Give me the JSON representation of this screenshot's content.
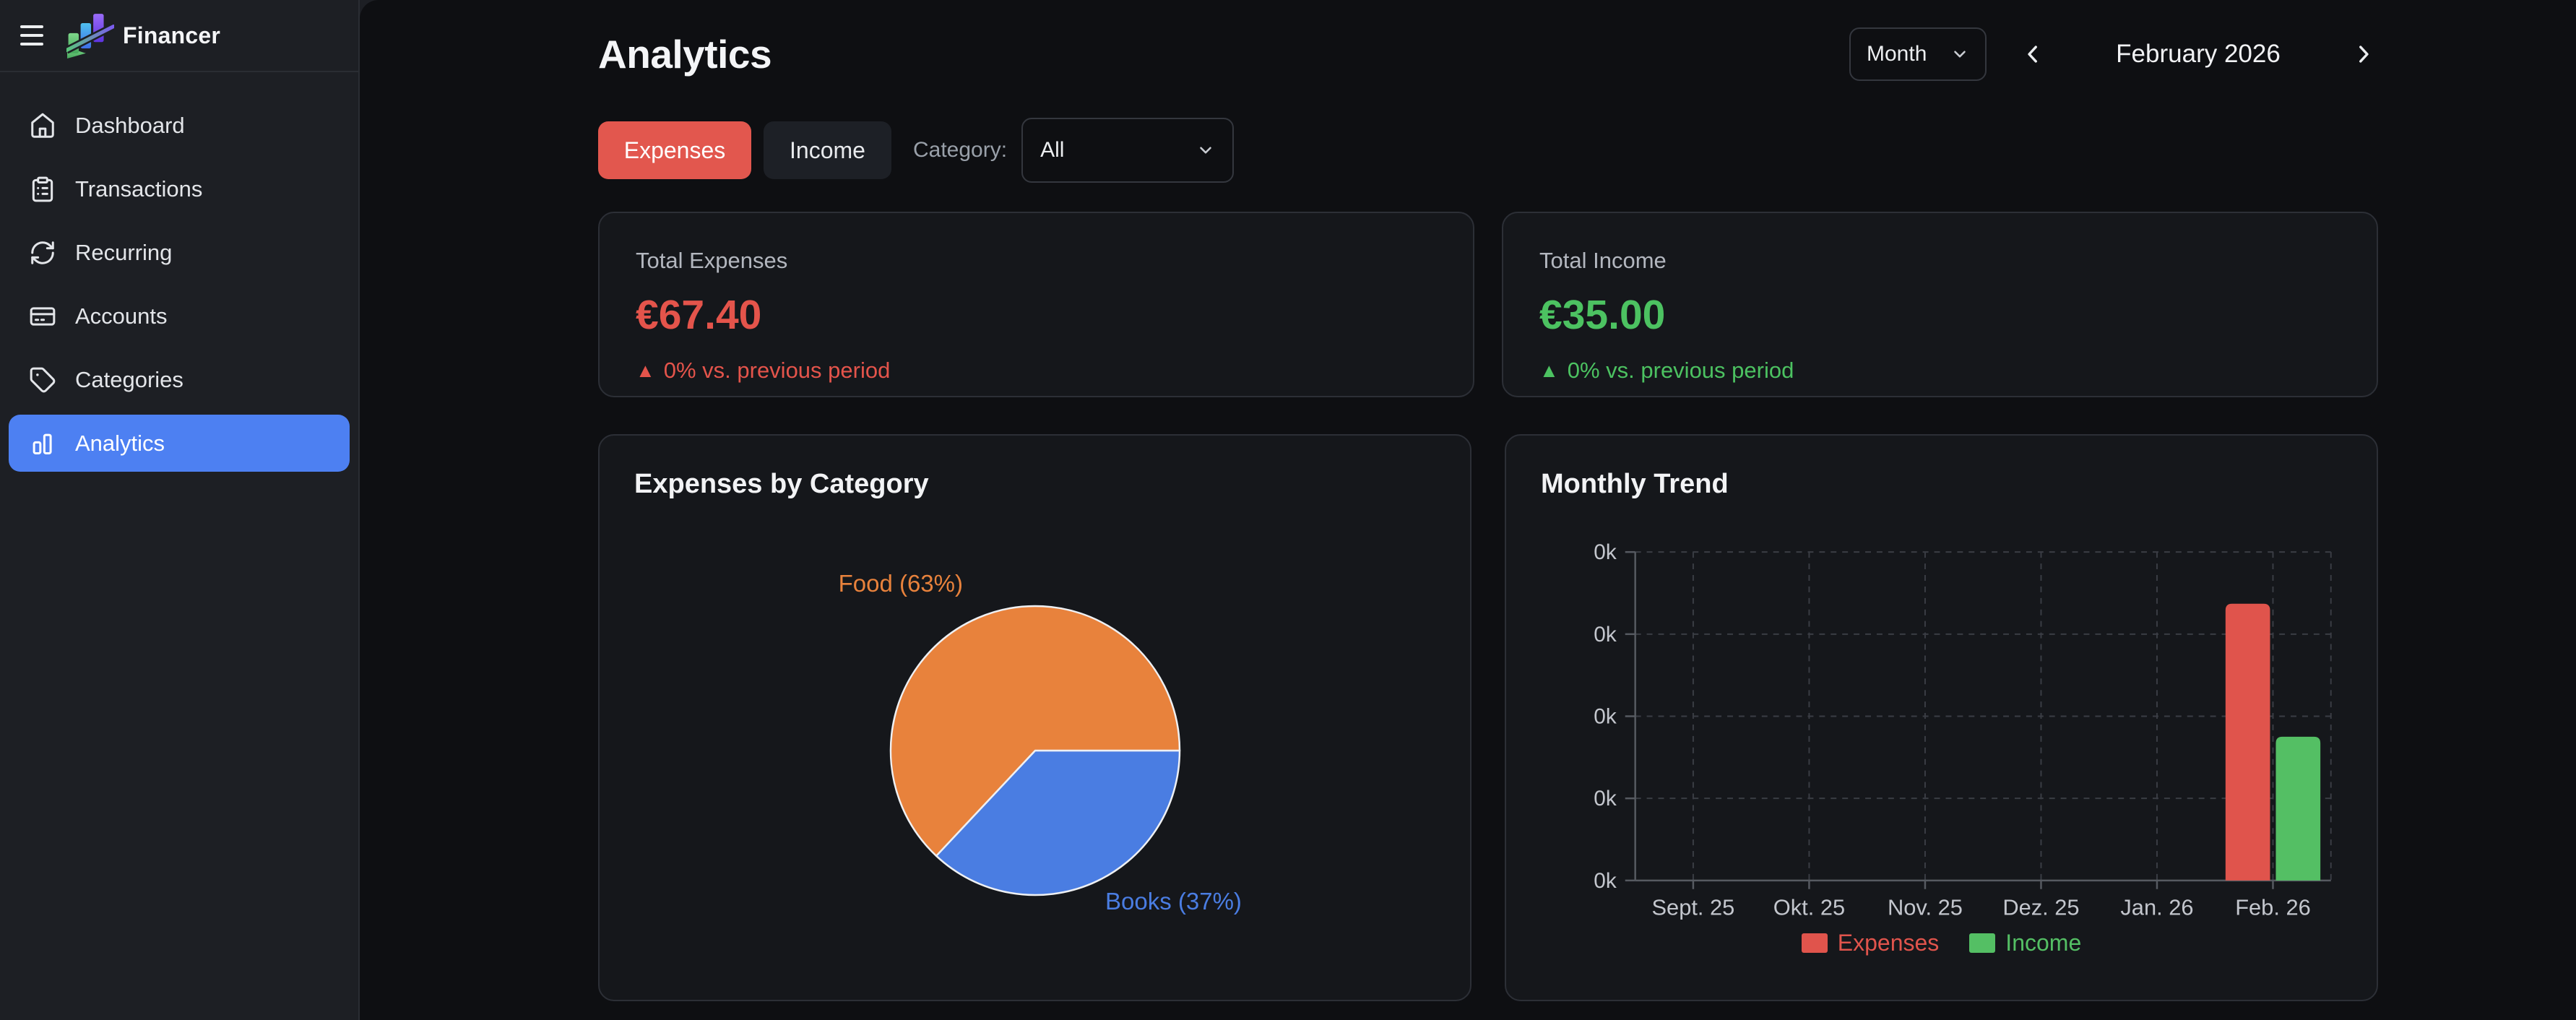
{
  "colors": {
    "accent_blue": "#4d80f2",
    "red": "#e2574e",
    "green": "#4cc261",
    "pie_orange": "#e8823c",
    "pie_blue": "#4a7de2",
    "card_bg": "#15171b",
    "main_bg": "#0e0f12",
    "sidebar_bg": "#1d1f24"
  },
  "sidebar": {
    "brand": "Financer",
    "active_color": "#4d80f2",
    "items": [
      {
        "label": "Dashboard",
        "active": false
      },
      {
        "label": "Transactions",
        "active": false
      },
      {
        "label": "Recurring",
        "active": false
      },
      {
        "label": "Accounts",
        "active": false
      },
      {
        "label": "Categories",
        "active": false
      },
      {
        "label": "Analytics",
        "active": true
      }
    ]
  },
  "header": {
    "title": "Analytics",
    "period_unit": "Month",
    "period_label": "February 2026"
  },
  "filters": {
    "expenses_tab": "Expenses",
    "income_tab": "Income",
    "active_tab_color": "#e2574e",
    "category_label": "Category:",
    "category_value": "All"
  },
  "stats": [
    {
      "label": "Total Expenses",
      "value": "€67.40",
      "arrow": "▲",
      "delta": "0% vs. previous period",
      "color": "#e4544b"
    },
    {
      "label": "Total Income",
      "value": "€35.00",
      "arrow": "▲",
      "delta": "0% vs. previous period",
      "color": "#4cc261"
    }
  ],
  "chart_data": [
    {
      "type": "pie",
      "title": "Expenses by Category",
      "start_deg": 0,
      "slices": [
        {
          "label": "Food",
          "percent": 63,
          "color": "#e8823c",
          "label_text": "Food (63%)"
        },
        {
          "label": "Books",
          "percent": 37,
          "color": "#4a7de2",
          "label_text": "Books (37%)"
        }
      ]
    },
    {
      "type": "bar",
      "title": "Monthly Trend",
      "categories": [
        "Sept. 25",
        "Okt. 25",
        "Nov. 25",
        "Dez. 25",
        "Jan. 26",
        "Feb. 26"
      ],
      "series": [
        {
          "name": "Expenses",
          "color": "#e0544c",
          "values": [
            0,
            0,
            0,
            0,
            0,
            67.4
          ]
        },
        {
          "name": "Income",
          "color": "#54bf64",
          "values": [
            0,
            0,
            0,
            0,
            0,
            35
          ]
        }
      ],
      "ylim": [
        0,
        80
      ],
      "y_ticks": {
        "values": [
          0,
          20,
          40,
          60,
          80
        ],
        "labels": [
          "0k",
          "0k",
          "0k",
          "0k",
          "0k"
        ]
      },
      "grid": "dashed",
      "legend_position": "bottom"
    }
  ]
}
